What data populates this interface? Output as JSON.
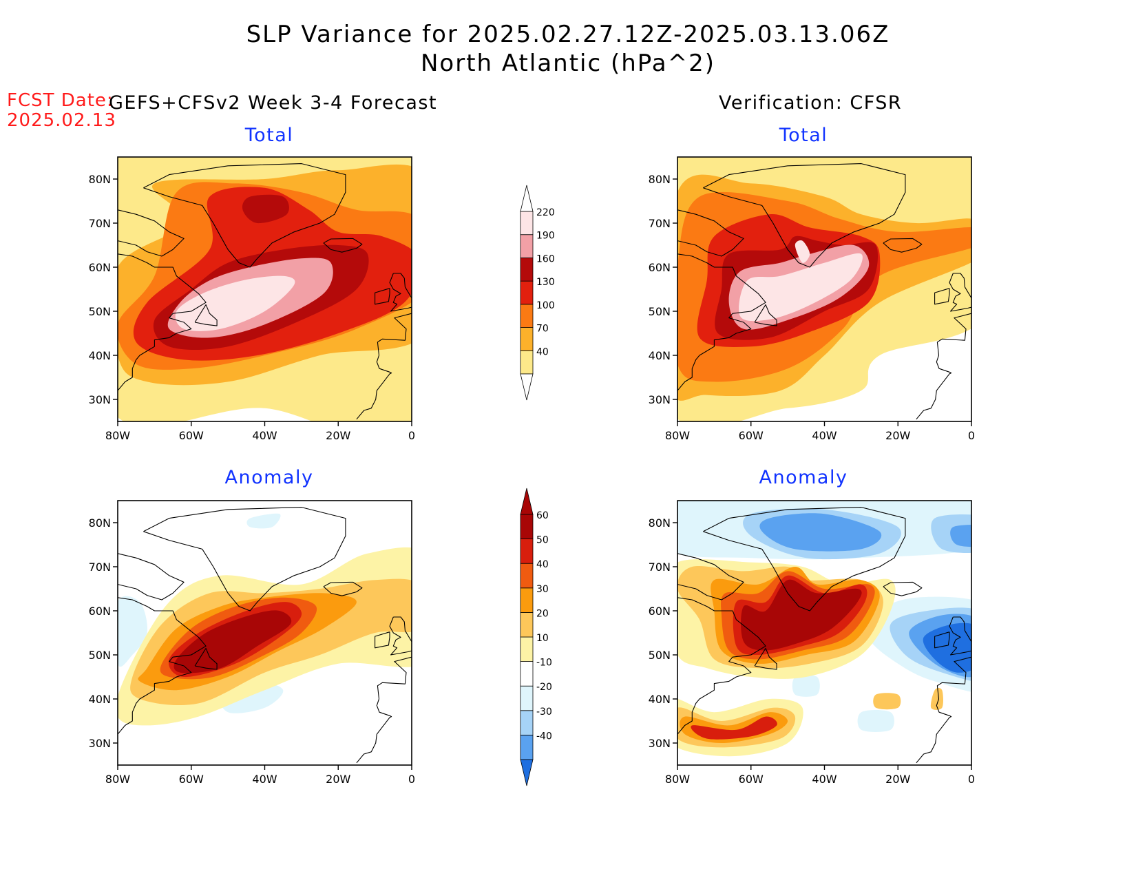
{
  "title": {
    "line1": "SLP Variance for 2025.02.27.12Z-2025.03.13.06Z",
    "line2": "North Atlantic (hPa^2)"
  },
  "fcst_date": {
    "label": "FCST Date:",
    "value": "2025.02.13"
  },
  "panels": {
    "forecast_header": "GEFS+CFSv2 Week 3-4 Forecast",
    "verification_header": "Verification: CFSR",
    "total_label": "Total",
    "anomaly_label": "Anomaly"
  },
  "map_axes": {
    "lat_labels": [
      "80N",
      "70N",
      "60N",
      "50N",
      "40N",
      "30N"
    ],
    "lon_labels": [
      "80W",
      "60W",
      "40W",
      "20W",
      "0"
    ]
  },
  "colorbars": {
    "total": {
      "levels": [
        "40",
        "70",
        "100",
        "130",
        "160",
        "190",
        "220"
      ],
      "colors": [
        "#fde98a",
        "#fcb12b",
        "#fb7a13",
        "#e2200e",
        "#b40a0a",
        "#f2a0a6",
        "#fde5e6"
      ]
    },
    "anomaly": {
      "levels": [
        "-40",
        "-30",
        "-20",
        "-10",
        "10",
        "20",
        "30",
        "40",
        "50",
        "60"
      ],
      "colors": [
        "#1f6fe0",
        "#5aa2f0",
        "#a6d3f7",
        "#dff5fc",
        "#ffffff",
        "#fdf3a6",
        "#fdc75a",
        "#fb9b0e",
        "#f05b10",
        "#d81e0d",
        "#a80606"
      ]
    }
  },
  "palettes": {
    "total": [
      "#fde98a",
      "#fcb12b",
      "#fb7a13",
      "#e2200e",
      "#b40a0a",
      "#f2a0a6",
      "#fde5e6"
    ],
    "anom_pos": [
      "#fdf3a6",
      "#fdc75a",
      "#fb9b0e",
      "#f05b10",
      "#d81e0d",
      "#a80606"
    ],
    "anom_neg": [
      "#dff5fc",
      "#a6d3f7",
      "#5aa2f0",
      "#1f6fe0"
    ]
  }
}
